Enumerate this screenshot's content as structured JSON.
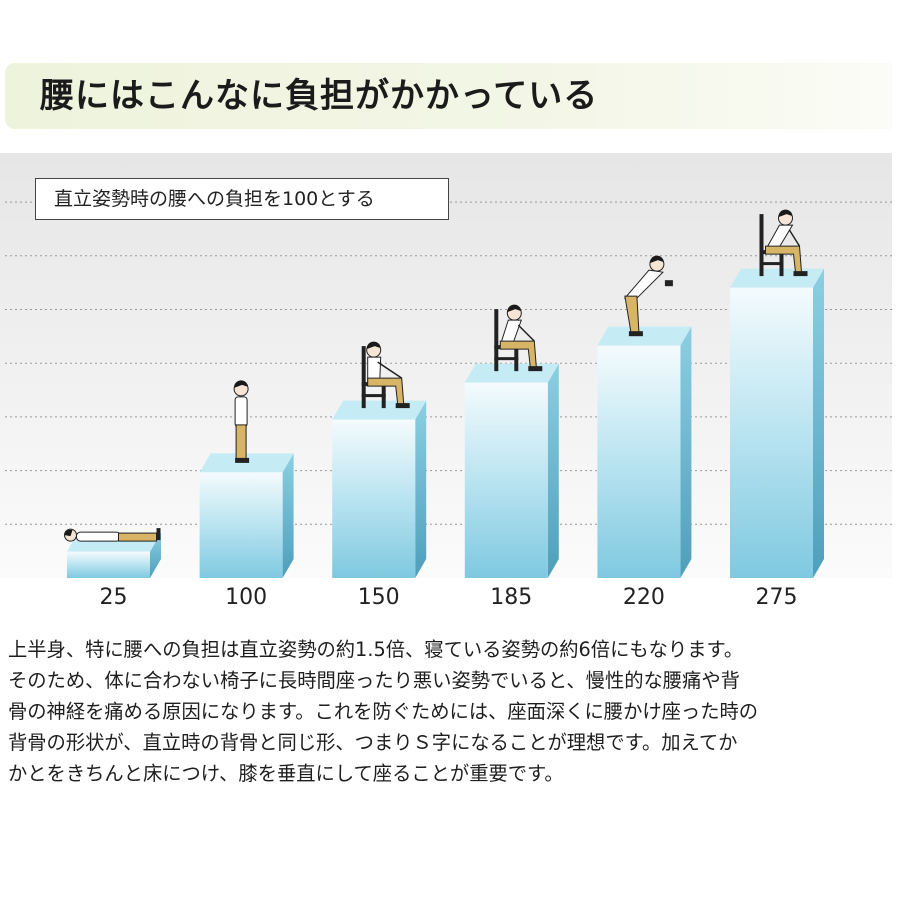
{
  "header": {
    "title": "腰にはこんなに負担がかかっている"
  },
  "chart_data": {
    "type": "bar",
    "note": "直立姿勢時の腰への負担を100とする",
    "categories": [
      "25",
      "100",
      "150",
      "185",
      "220",
      "275"
    ],
    "values": [
      25,
      100,
      150,
      185,
      220,
      275
    ],
    "postures": [
      "lying-figure",
      "standing-figure",
      "sitting-upright-figure",
      "sitting-leaning-figure",
      "standing-bent-figure",
      "sitting-forward-figure"
    ],
    "ylim": [
      0,
      300
    ],
    "grid": true,
    "colors": {
      "bar_front": "#8fd2e6",
      "bar_side": "#5aaac4",
      "bar_top": "#c5ebf5",
      "grid": "#9a9a9a",
      "figure_pants": "#d8b566"
    }
  },
  "description": {
    "lines": [
      "上半身、特に腰への負担は直立姿勢の約1.5倍、寝ている姿勢の約6倍にもなります。",
      "そのため、体に合わない椅子に長時間座ったり悪い姿勢でいると、慢性的な腰痛や背",
      "骨の神経を痛める原因になります。これを防ぐためには、座面深くに腰かけ座った時の",
      "背骨の形状が、直立時の背骨と同じ形、つまりＳ字になることが理想です。加えてか",
      "かとをきちんと床につけ、膝を垂直にして座ることが重要です。"
    ]
  }
}
